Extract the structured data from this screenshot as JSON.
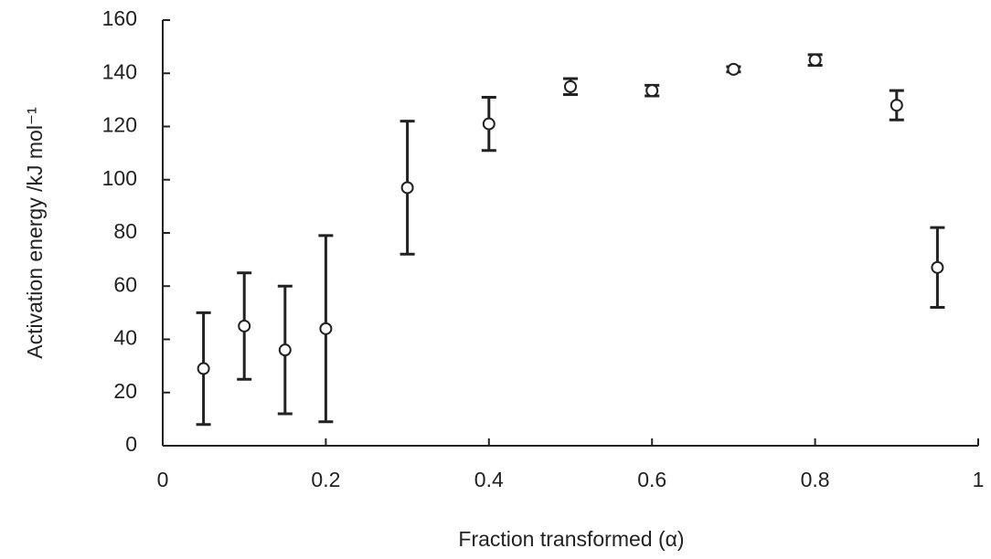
{
  "chart_data": {
    "type": "scatter",
    "xlabel": "Fraction transformed (α)",
    "ylabel": "Activation energy /kJ mol⁻¹",
    "x": [
      0.05,
      0.1,
      0.15,
      0.2,
      0.3,
      0.4,
      0.5,
      0.6,
      0.7,
      0.8,
      0.9,
      0.95
    ],
    "values": [
      29,
      45,
      36,
      44,
      97,
      121,
      135,
      133.5,
      141.5,
      145,
      128,
      67
    ],
    "errors": [
      21,
      20,
      24,
      35,
      25,
      10,
      3,
      2,
      1,
      2,
      5.5,
      15
    ],
    "color": "#222222",
    "xlim": [
      0,
      1
    ],
    "xticks": [
      0,
      0.2,
      0.4,
      0.6,
      0.8,
      1
    ],
    "ylim": [
      0,
      160
    ],
    "yticks": [
      0,
      20,
      40,
      60,
      80,
      100,
      120,
      140,
      160
    ]
  }
}
